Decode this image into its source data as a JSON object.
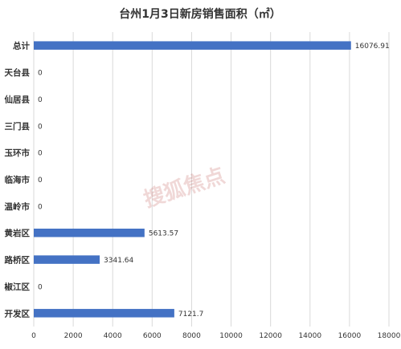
{
  "chart_data": {
    "type": "bar",
    "orientation": "horizontal",
    "title": "台州1月3日新房销售面积（㎡）",
    "categories": [
      "总计",
      "天台县",
      "仙居县",
      "三门县",
      "玉环市",
      "临海市",
      "温岭市",
      "黄岩区",
      "路桥区",
      "椒江区",
      "开发区"
    ],
    "values": [
      16076.91,
      0,
      0,
      0,
      0,
      0,
      0,
      5613.57,
      3341.64,
      0,
      7121.7
    ],
    "value_labels": [
      "16076.91",
      "0",
      "0",
      "0",
      "0",
      "0",
      "0",
      "5613.57",
      "3341.64",
      "0",
      "7121.7"
    ],
    "xlim": [
      0,
      18000
    ],
    "xticks": [
      "0",
      "2000",
      "4000",
      "6000",
      "8000",
      "10000",
      "12000",
      "14000",
      "16000",
      "18000"
    ],
    "grid": true,
    "bar_color": "#4472c4",
    "watermark": "搜狐焦点"
  }
}
